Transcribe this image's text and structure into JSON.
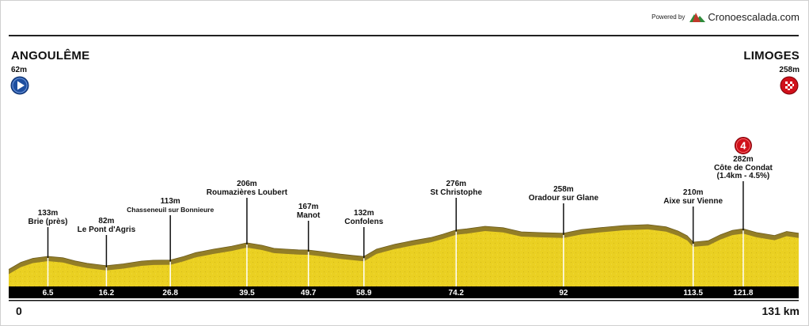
{
  "branding": {
    "powered_by": "Powered by",
    "logo_text": "Cronoescalada.com",
    "logo_colors": [
      "#c0392b",
      "#2e8b3a"
    ]
  },
  "chart_data": {
    "type": "area",
    "title": "",
    "xlabel": "",
    "ylabel": "",
    "x_unit": "km",
    "xlim": [
      0,
      131
    ],
    "ylim": [
      0,
      700
    ],
    "start": {
      "name": "ANGOULÊME",
      "altitude": "62m",
      "icon": "play-circle-icon",
      "icon_color": "#1e4fa0"
    },
    "finish": {
      "name": "LIMOGES",
      "altitude": "258m",
      "icon": "checkered-flag-icon",
      "icon_color": "#d0101a"
    },
    "axis_start_label": "0",
    "axis_end_label": "131 km",
    "colors": {
      "fill": "#ead022",
      "shade": "#8a7428",
      "band": "#000000"
    },
    "profile": {
      "km": [
        0,
        2,
        4,
        6.5,
        9,
        11,
        13,
        16.2,
        19,
        22,
        24,
        26.8,
        29,
        31,
        34,
        37,
        39.5,
        42,
        44,
        46,
        48,
        49.7,
        52,
        55,
        57,
        58.9,
        61,
        64,
        67,
        70,
        72,
        74.2,
        76,
        79,
        82,
        85,
        88,
        92,
        95,
        98,
        102,
        106,
        109,
        111,
        112.5,
        113.5,
        116,
        118,
        120,
        121.8,
        124,
        127,
        129,
        131
      ],
      "alt": [
        62,
        100,
        122,
        133,
        125,
        108,
        95,
        82,
        92,
        107,
        112,
        113,
        132,
        153,
        172,
        188,
        206,
        193,
        176,
        172,
        168,
        167,
        158,
        145,
        138,
        132,
        172,
        198,
        218,
        235,
        253,
        276,
        282,
        296,
        288,
        266,
        262,
        258,
        278,
        288,
        300,
        305,
        293,
        270,
        245,
        210,
        218,
        250,
        274,
        282,
        262,
        246,
        268,
        258
      ]
    },
    "markers": [
      {
        "km": 6.5,
        "km_label": "6.5",
        "altitude": "133m",
        "name": "Brie (près)",
        "name2": "",
        "climb": ""
      },
      {
        "km": 16.2,
        "km_label": "16.2",
        "altitude": "82m",
        "name": "Le Pont d'Agris",
        "name2": "",
        "climb": ""
      },
      {
        "km": 26.8,
        "km_label": "26.8",
        "altitude": "113m",
        "name": "Chasseneuil sur Bonnieure",
        "name2": "",
        "climb": ""
      },
      {
        "km": 39.5,
        "km_label": "39.5",
        "altitude": "206m",
        "name": "Roumazières Loubert",
        "name2": "",
        "climb": ""
      },
      {
        "km": 49.7,
        "km_label": "49.7",
        "altitude": "167m",
        "name": "Manot",
        "name2": "",
        "climb": ""
      },
      {
        "km": 58.9,
        "km_label": "58.9",
        "altitude": "132m",
        "name": "Confolens",
        "name2": "",
        "climb": ""
      },
      {
        "km": 74.2,
        "km_label": "74.2",
        "altitude": "276m",
        "name": "St Christophe",
        "name2": "",
        "climb": ""
      },
      {
        "km": 92,
        "km_label": "92",
        "altitude": "258m",
        "name": "Oradour sur Glane",
        "name2": "",
        "climb": ""
      },
      {
        "km": 113.5,
        "km_label": "113.5",
        "altitude": "210m",
        "name": "Aixe sur Vienne",
        "name2": "",
        "climb": ""
      },
      {
        "km": 121.8,
        "km_label": "121.8",
        "altitude": "282m",
        "name": "Côte de Condat",
        "name2": "(1.4km - 4.5%)",
        "climb": "4"
      }
    ]
  }
}
